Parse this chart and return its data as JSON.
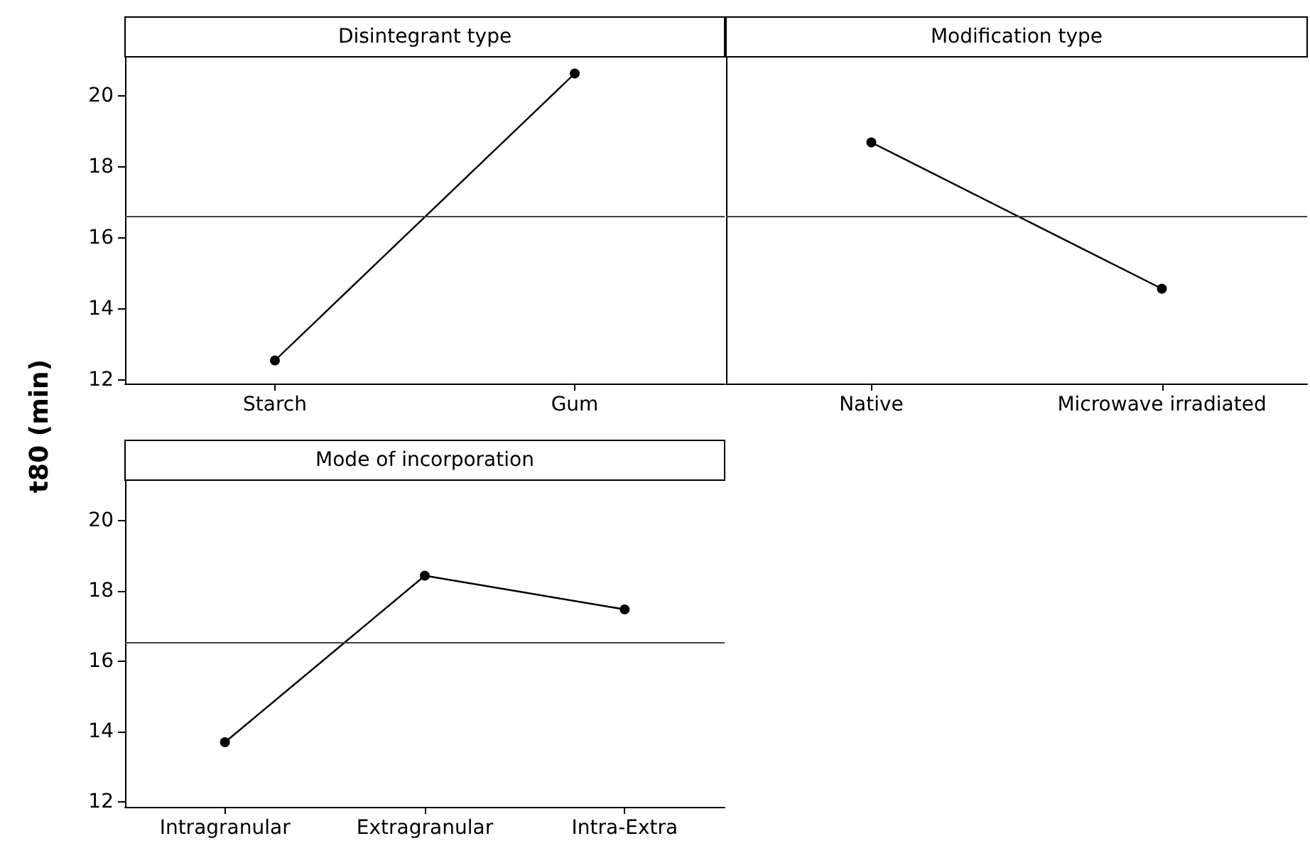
{
  "chart_data": [
    {
      "type": "line",
      "title": "Disintegrant type",
      "ylabel": "t80 (min)",
      "categories": [
        "Starch",
        "Gum"
      ],
      "series": [
        {
          "color": "#000000",
          "values": [
            12.55,
            20.63
          ]
        }
      ],
      "ylim": [
        11.9,
        21.1
      ],
      "yticks": [
        12,
        14,
        16,
        18,
        20
      ],
      "marker": "circle",
      "line_style": "solid",
      "grid": false,
      "ref_lines": [
        {
          "axis": "y",
          "value": 16.6,
          "color": "#404040"
        }
      ]
    },
    {
      "type": "line",
      "title": "Modification type",
      "categories": [
        "Native",
        "Microwave irradiated"
      ],
      "series": [
        {
          "color": "#000000",
          "values": [
            18.69,
            14.57
          ]
        }
      ],
      "ylim": [
        11.9,
        21.1
      ],
      "yticks": [
        12,
        14,
        16,
        18,
        20
      ],
      "tick_labels": "x",
      "marker": "circle",
      "line_style": "solid",
      "grid": false,
      "ref_lines": [
        {
          "axis": "y",
          "value": 16.6,
          "color": "#404040"
        }
      ]
    },
    {
      "type": "line",
      "title": "Mode of incorporation",
      "categories": [
        "Intragranular",
        "Extragranular",
        "Intra-Extra"
      ],
      "series": [
        {
          "color": "#000000",
          "values": [
            13.69,
            18.43,
            17.47
          ]
        }
      ],
      "ylim": [
        11.85,
        21.15
      ],
      "yticks": [
        12,
        14,
        16,
        18,
        20
      ],
      "marker": "circle",
      "line_style": "solid",
      "grid": false,
      "ref_lines": [
        {
          "axis": "y",
          "value": 16.54,
          "color": "#404040"
        }
      ]
    }
  ]
}
